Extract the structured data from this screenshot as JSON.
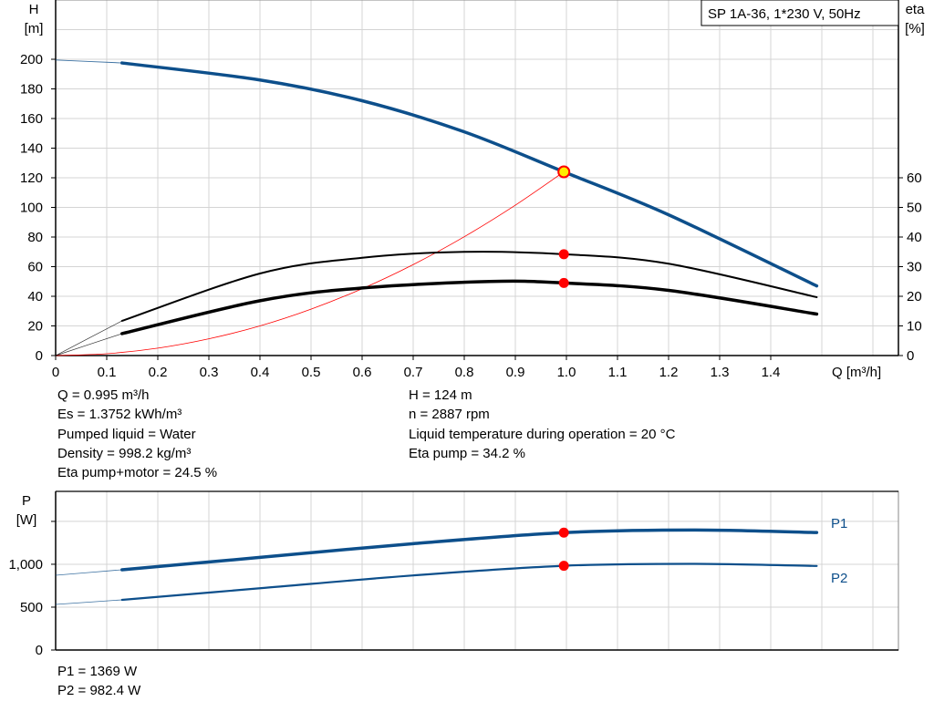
{
  "chart_data": [
    {
      "type": "line",
      "legend_box": "SP 1A-36, 1*230 V, 50Hz",
      "xlabel": "Q [m³/h]",
      "xlim": [
        0,
        1.65
      ],
      "xticks": [
        "0",
        "0.1",
        "0.2",
        "0.3",
        "0.4",
        "0.5",
        "0.6",
        "0.7",
        "0.8",
        "0.9",
        "1.0",
        "1.1",
        "1.2",
        "1.3",
        "1.4"
      ],
      "ylabel": [
        "H",
        "[m]"
      ],
      "ylim": [
        0,
        240
      ],
      "yticks": [
        "0",
        "20",
        "40",
        "60",
        "80",
        "100",
        "120",
        "140",
        "160",
        "180",
        "200"
      ],
      "y2label": [
        "eta",
        "[%]"
      ],
      "y2lim": [
        0,
        120
      ],
      "y2ticks": [
        "0",
        "10",
        "20",
        "30",
        "40",
        "50",
        "60"
      ],
      "grid": true,
      "colors": {
        "head": "#0d4f8b",
        "eta": "#000000",
        "system": "#ff0000",
        "marker": "#ff0000",
        "duty_marker": "#ffee00"
      },
      "series": [
        {
          "key": "H",
          "axis": "left",
          "x": [
            0,
            0.13,
            0.4,
            0.6,
            0.8,
            0.995,
            1.2,
            1.49
          ],
          "values": [
            199.5,
            197.5,
            186,
            172,
            151,
            124,
            95,
            47
          ]
        },
        {
          "key": "eta_pump",
          "axis": "right",
          "x": [
            0,
            0.13,
            0.4,
            0.6,
            0.8,
            0.995,
            1.2,
            1.49
          ],
          "values": [
            0,
            11.7,
            27.7,
            33,
            35,
            34.2,
            31,
            19.7
          ]
        },
        {
          "key": "eta_pump_motor",
          "axis": "right",
          "x": [
            0,
            0.13,
            0.4,
            0.6,
            0.85,
            0.995,
            1.2,
            1.49
          ],
          "values": [
            0,
            7.4,
            18.5,
            22.8,
            25,
            24.5,
            22,
            14
          ]
        },
        {
          "key": "system_curve",
          "axis": "left",
          "x": [
            0,
            0.1,
            0.2,
            0.3,
            0.4,
            0.5,
            0.6,
            0.7,
            0.8,
            0.9,
            0.995
          ],
          "values": [
            0,
            1.25,
            5.0,
            11.3,
            20.0,
            31.3,
            45.1,
            61.4,
            80.2,
            101.5,
            124
          ]
        }
      ],
      "duty_point": {
        "Q": 0.995,
        "H": 124,
        "eta_pump": 34.2,
        "eta_pump_motor": 24.5
      }
    },
    {
      "type": "line",
      "ylabel": [
        "P",
        "[W]"
      ],
      "ylim": [
        0,
        1850
      ],
      "yticks": [
        {
          "v": 0,
          "label": "0"
        },
        {
          "v": 500,
          "label": "500"
        },
        {
          "v": 1000,
          "label": "1,000"
        },
        {
          "v": 1500,
          "label": ""
        }
      ],
      "xlim": [
        0,
        1.65
      ],
      "grid": true,
      "colors": {
        "line": "#0d4f8b",
        "marker": "#ff0000"
      },
      "series": [
        {
          "name": "P1",
          "x": [
            0,
            0.13,
            0.4,
            0.7,
            0.995,
            1.25,
            1.49
          ],
          "values": [
            872,
            936,
            1080,
            1240,
            1369,
            1400,
            1370
          ]
        },
        {
          "name": "P2",
          "x": [
            0,
            0.13,
            0.4,
            0.7,
            0.995,
            1.25,
            1.49
          ],
          "values": [
            532,
            585,
            720,
            870,
            982.4,
            1005,
            980
          ]
        }
      ],
      "duty_point": {
        "Q": 0.995,
        "P1": 1369,
        "P2": 982.4
      }
    }
  ],
  "info_left": [
    "Q = 0.995 m³/h",
    "Es = 1.3752 kWh/m³",
    "Pumped liquid = Water",
    "Density = 998.2 kg/m³",
    "Eta pump+motor = 24.5 %"
  ],
  "info_right": [
    "H = 124 m",
    "n = 2887 rpm",
    "Liquid temperature during operation = 20 °C",
    "Eta pump = 34.2 %"
  ],
  "power_info": [
    "P1 = 1369 W",
    "P2 = 982.4 W"
  ]
}
